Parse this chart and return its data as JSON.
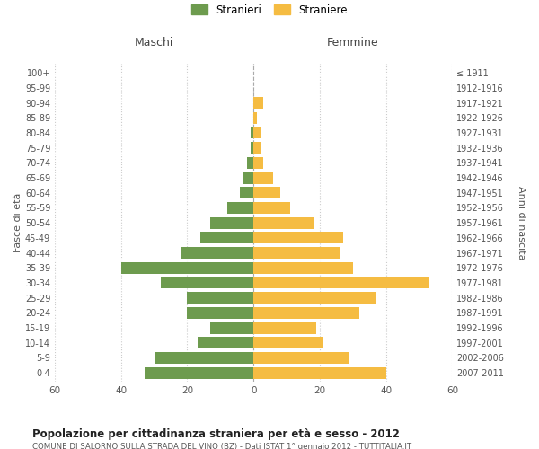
{
  "age_groups": [
    "0-4",
    "5-9",
    "10-14",
    "15-19",
    "20-24",
    "25-29",
    "30-34",
    "35-39",
    "40-44",
    "45-49",
    "50-54",
    "55-59",
    "60-64",
    "65-69",
    "70-74",
    "75-79",
    "80-84",
    "85-89",
    "90-94",
    "95-99",
    "100+"
  ],
  "birth_years": [
    "2007-2011",
    "2002-2006",
    "1997-2001",
    "1992-1996",
    "1987-1991",
    "1982-1986",
    "1977-1981",
    "1972-1976",
    "1967-1971",
    "1962-1966",
    "1957-1961",
    "1952-1956",
    "1947-1951",
    "1942-1946",
    "1937-1941",
    "1932-1936",
    "1927-1931",
    "1922-1926",
    "1917-1921",
    "1912-1916",
    "≤ 1911"
  ],
  "maschi": [
    33,
    30,
    17,
    13,
    20,
    20,
    28,
    40,
    22,
    16,
    13,
    8,
    4,
    3,
    2,
    1,
    1,
    0,
    0,
    0,
    0
  ],
  "femmine": [
    40,
    29,
    21,
    19,
    32,
    37,
    53,
    30,
    26,
    27,
    18,
    11,
    8,
    6,
    3,
    2,
    2,
    1,
    3,
    0,
    0
  ],
  "color_maschi": "#6d9b4e",
  "color_femmine": "#f5bc42",
  "title": "Popolazione per cittadinanza straniera per età e sesso - 2012",
  "subtitle": "COMUNE DI SALORNO SULLA STRADA DEL VINO (BZ) - Dati ISTAT 1° gennaio 2012 - TUTTITALIA.IT",
  "xlabel_left": "Maschi",
  "xlabel_right": "Femmine",
  "ylabel_left": "Fasce di età",
  "ylabel_right": "Anni di nascita",
  "legend_maschi": "Stranieri",
  "legend_femmine": "Straniere",
  "xlim": 60,
  "background_color": "#ffffff",
  "grid_color": "#cccccc"
}
